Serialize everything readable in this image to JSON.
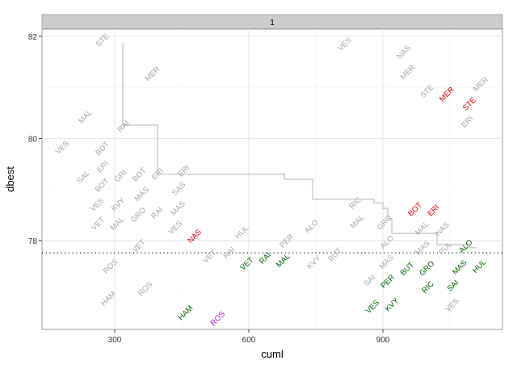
{
  "chart_data": {
    "type": "scatter",
    "facet_label": "1",
    "xlabel": "cuml",
    "ylabel": "dbest",
    "xlim": [
      137,
      1170
    ],
    "ylim": [
      76.26,
      82.13
    ],
    "x_ticks": [
      300,
      600,
      900
    ],
    "y_ticks": [
      78,
      80,
      82
    ],
    "grid": true,
    "hline": 77.76,
    "colors": {
      "gray": "#a6a6a6",
      "red": "#e00000",
      "green": "#006400",
      "purple": "#a020f0",
      "step": "#cccccc"
    },
    "step_line": [
      [
        318,
        81.87
      ],
      [
        318,
        80.26
      ],
      [
        396,
        80.26
      ],
      [
        396,
        79.3
      ],
      [
        680,
        79.3
      ],
      [
        680,
        79.2
      ],
      [
        743,
        79.2
      ],
      [
        743,
        78.81
      ],
      [
        880,
        78.81
      ],
      [
        880,
        78.74
      ],
      [
        900,
        78.74
      ],
      [
        900,
        78.63
      ],
      [
        911,
        78.63
      ],
      [
        911,
        78.43
      ],
      [
        920,
        78.43
      ],
      [
        920,
        78.14
      ],
      [
        1021,
        78.14
      ],
      [
        1021,
        77.92
      ],
      [
        1088,
        77.92
      ],
      [
        1088,
        77.86
      ],
      [
        1110,
        77.86
      ]
    ],
    "points": [
      {
        "label": "STE",
        "x": 273,
        "y": 81.92,
        "color": "gray"
      },
      {
        "label": "MER",
        "x": 385,
        "y": 81.26,
        "color": "gray"
      },
      {
        "label": "MAL",
        "x": 235,
        "y": 80.42,
        "color": "gray"
      },
      {
        "label": "RAI",
        "x": 320,
        "y": 80.23,
        "color": "gray"
      },
      {
        "label": "VES",
        "x": 183,
        "y": 79.82,
        "color": "gray"
      },
      {
        "label": "BOT",
        "x": 273,
        "y": 79.71,
        "color": "gray"
      },
      {
        "label": "SAL",
        "x": 268,
        "y": 79.24,
        "color": "gray"
      },
      {
        "label": "GRI",
        "x": 276,
        "y": 79.26,
        "color": "gray"
      },
      {
        "label": "ERI",
        "x": 283,
        "y": 79.3,
        "color": "gray"
      },
      {
        "label": "BOT",
        "x": 288,
        "y": 79.22,
        "color": "gray"
      },
      {
        "label": "BOT",
        "x": 352,
        "y": 79.25,
        "color": "gray"
      },
      {
        "label": "ERI",
        "x": 374,
        "y": 79.3,
        "color": "gray"
      },
      {
        "label": "ERI",
        "x": 455,
        "y": 79.34,
        "color": "gray"
      },
      {
        "label": "VES",
        "x": 262,
        "y": 78.63,
        "color": "gray"
      },
      {
        "label": "VET",
        "x": 268,
        "y": 78.41,
        "color": "gray"
      },
      {
        "label": "KVY",
        "x": 305,
        "y": 78.6,
        "color": "gray"
      },
      {
        "label": "MAL",
        "x": 303,
        "y": 78.5,
        "color": "gray"
      },
      {
        "label": "MAS",
        "x": 361,
        "y": 78.8,
        "color": "gray"
      },
      {
        "label": "GRO",
        "x": 373,
        "y": 78.62,
        "color": "gray"
      },
      {
        "label": "RAI",
        "x": 396,
        "y": 78.55,
        "color": "gray"
      },
      {
        "label": "SAS",
        "x": 441,
        "y": 78.78,
        "color": "gray"
      },
      {
        "label": "MAS",
        "x": 438,
        "y": 78.75,
        "color": "gray"
      },
      {
        "label": "VES",
        "x": 432,
        "y": 78.38,
        "color": "gray"
      },
      {
        "label": "VET",
        "x": 354,
        "y": 77.89,
        "color": "gray"
      },
      {
        "label": "ROS",
        "x": 291,
        "y": 77.49,
        "color": "gray"
      },
      {
        "label": "HAM",
        "x": 286,
        "y": 76.86,
        "color": "gray"
      },
      {
        "label": "ROS",
        "x": 369,
        "y": 77.05,
        "color": "gray"
      },
      {
        "label": "VET",
        "x": 513,
        "y": 77.68,
        "color": "gray"
      },
      {
        "label": "RAI",
        "x": 560,
        "y": 77.76,
        "color": "gray"
      },
      {
        "label": "HUL",
        "x": 585,
        "y": 78.16,
        "color": "gray"
      },
      {
        "label": "PER",
        "x": 685,
        "y": 77.97,
        "color": "gray"
      },
      {
        "label": "ALO",
        "x": 741,
        "y": 78.27,
        "color": "gray"
      },
      {
        "label": "KVY",
        "x": 746,
        "y": 77.57,
        "color": "gray"
      },
      {
        "label": "BUT",
        "x": 793,
        "y": 77.72,
        "color": "gray"
      },
      {
        "label": "RIC",
        "x": 839,
        "y": 78.6,
        "color": "gray"
      },
      {
        "label": "MAL",
        "x": 843,
        "y": 78.5,
        "color": "gray"
      },
      {
        "label": "GRO",
        "x": 904,
        "y": 78.0,
        "color": "gray"
      },
      {
        "label": "MAS",
        "x": 912,
        "y": 77.85,
        "color": "gray"
      },
      {
        "label": "ALO",
        "x": 910,
        "y": 77.9,
        "color": "gray"
      },
      {
        "label": "SAI",
        "x": 893,
        "y": 77.26,
        "color": "gray"
      },
      {
        "label": "MAS",
        "x": 1001,
        "y": 77.82,
        "color": "gray"
      },
      {
        "label": "PUL",
        "x": 1027,
        "y": 77.82,
        "color": "gray"
      },
      {
        "label": "MAL",
        "x": 1001,
        "y": 78.25,
        "color": "gray"
      },
      {
        "label": "NAS",
        "x": 1019,
        "y": 78.15,
        "color": "gray"
      },
      {
        "label": "VES",
        "x": 1055,
        "y": 76.73,
        "color": "gray"
      },
      {
        "label": "VES",
        "x": 815,
        "y": 81.84,
        "color": "gray"
      },
      {
        "label": "NAS",
        "x": 947,
        "y": 81.64,
        "color": "gray"
      },
      {
        "label": "MER",
        "x": 956,
        "y": 81.34,
        "color": "gray"
      },
      {
        "label": "STE",
        "x": 1014,
        "y": 80.92,
        "color": "gray"
      },
      {
        "label": "MER",
        "x": 1119,
        "y": 81.05,
        "color": "gray"
      },
      {
        "label": "ERI",
        "x": 1089,
        "y": 80.34,
        "color": "gray"
      },
      {
        "label": "MER",
        "x": 1029,
        "y": 80.86,
        "color": "red"
      },
      {
        "label": "STE",
        "x": 1094,
        "y": 80.66,
        "color": "red"
      },
      {
        "label": "NAS",
        "x": 470,
        "y": 78.08,
        "color": "red"
      },
      {
        "label": "BOT",
        "x": 985,
        "y": 78.41,
        "color": "red"
      },
      {
        "label": "ERI",
        "x": 1001,
        "y": 78.46,
        "color": "red"
      },
      {
        "label": "HAM",
        "x": 459,
        "y": 76.58,
        "color": "green"
      },
      {
        "label": "VET",
        "x": 595,
        "y": 77.54,
        "color": "green"
      },
      {
        "label": "RAI",
        "x": 636,
        "y": 77.65,
        "color": "green"
      },
      {
        "label": "MAL",
        "x": 676,
        "y": 77.62,
        "color": "green"
      },
      {
        "label": "PER",
        "x": 902,
        "y": 77.29,
        "color": "green"
      },
      {
        "label": "VES",
        "x": 885,
        "y": 76.7,
        "color": "green"
      },
      {
        "label": "KVY",
        "x": 913,
        "y": 76.74,
        "color": "green"
      },
      {
        "label": "BUT",
        "x": 960,
        "y": 77.49,
        "color": "green"
      },
      {
        "label": "GRO",
        "x": 983,
        "y": 77.6,
        "color": "green"
      },
      {
        "label": "RIC",
        "x": 1001,
        "y": 77.23,
        "color": "green"
      },
      {
        "label": "SAI",
        "x": 1057,
        "y": 77.22,
        "color": "green"
      },
      {
        "label": "MAS",
        "x": 1075,
        "y": 77.62,
        "color": "green"
      },
      {
        "label": "ALO",
        "x": 1086,
        "y": 77.72,
        "color": "green"
      },
      {
        "label": "HUL",
        "x": 1111,
        "y": 77.5,
        "color": "green"
      },
      {
        "label": "ROS",
        "x": 531,
        "y": 76.47,
        "color": "purple"
      }
    ]
  }
}
